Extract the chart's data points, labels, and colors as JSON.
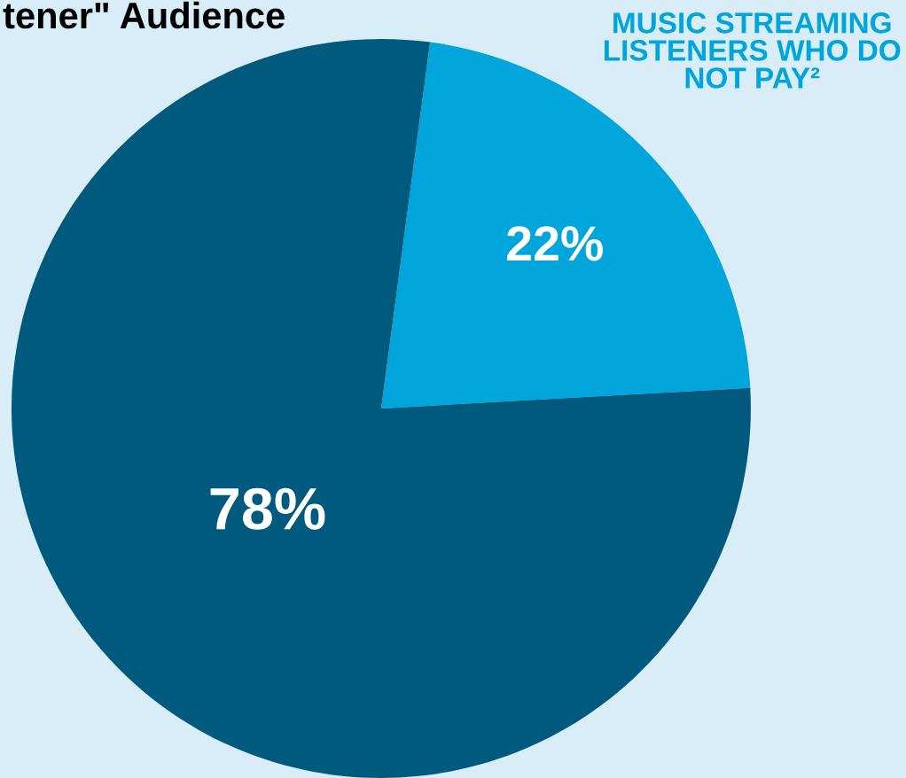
{
  "chart_data": {
    "type": "pie",
    "title": "tener\" Audience",
    "categories": [
      "MUSIC STREAMING LISTENERS WHO DO NOT PAY²",
      null
    ],
    "values": [
      22,
      78
    ],
    "colors": [
      "#00a5dc",
      "#005a7e"
    ],
    "value_labels": [
      "22%",
      "78%"
    ]
  }
}
